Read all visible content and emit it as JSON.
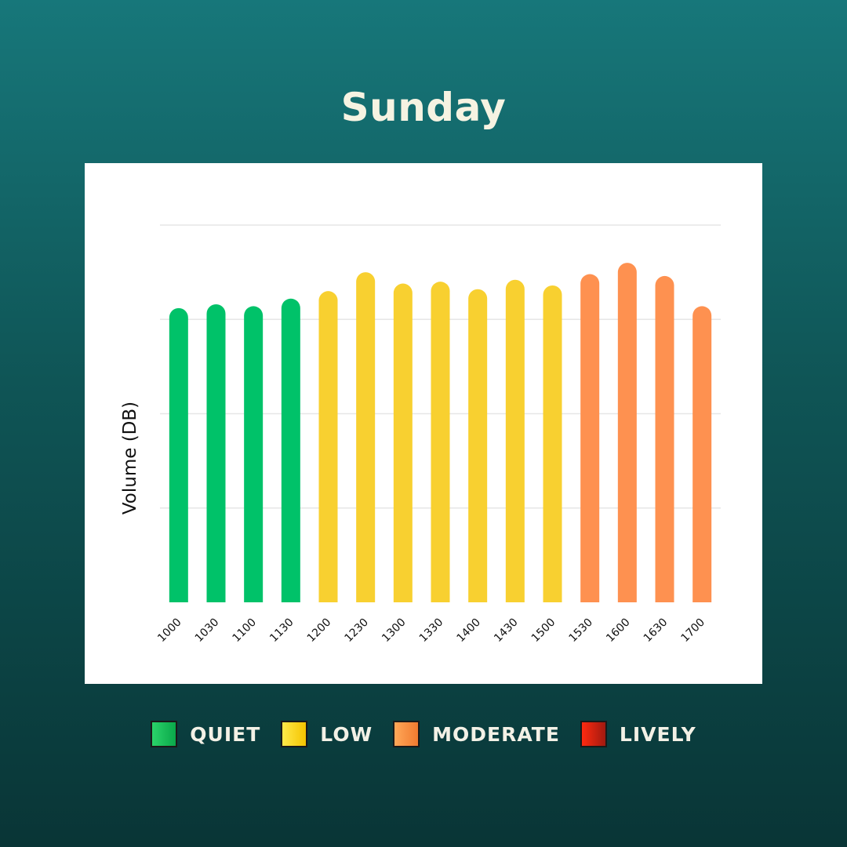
{
  "title": "Sunday",
  "chart_data": {
    "type": "bar",
    "title": "Sunday",
    "xlabel": "",
    "ylabel": "Volume (DB)",
    "grid": true,
    "ylim": [
      0,
      100
    ],
    "categories": [
      "1000",
      "1030",
      "1100",
      "1130",
      "1200",
      "1230",
      "1300",
      "1330",
      "1400",
      "1430",
      "1500",
      "1530",
      "1600",
      "1630",
      "1700"
    ],
    "values": [
      78,
      79,
      78.5,
      80.5,
      82.5,
      87.5,
      84.5,
      85,
      83,
      85.5,
      84,
      87,
      90,
      86.5,
      78.5
    ],
    "levels": [
      "quiet",
      "quiet",
      "quiet",
      "quiet",
      "low",
      "low",
      "low",
      "low",
      "low",
      "low",
      "low",
      "moderate",
      "moderate",
      "moderate",
      "moderate"
    ]
  },
  "legend": [
    {
      "key": "quiet",
      "label": "QUIET",
      "color": "#00c269",
      "gradient": [
        "#2bd36a",
        "#0aa84a"
      ]
    },
    {
      "key": "low",
      "label": "LOW",
      "color": "#f8d030",
      "gradient": [
        "#ffe94a",
        "#f4c400"
      ]
    },
    {
      "key": "moderate",
      "label": "MODERATE",
      "color": "#fe9150",
      "gradient": [
        "#ffa858",
        "#f07a30"
      ]
    },
    {
      "key": "lively",
      "label": "LIVELY",
      "color": "#d01a10",
      "gradient": [
        "#ff2a10",
        "#a01a10"
      ]
    }
  ]
}
